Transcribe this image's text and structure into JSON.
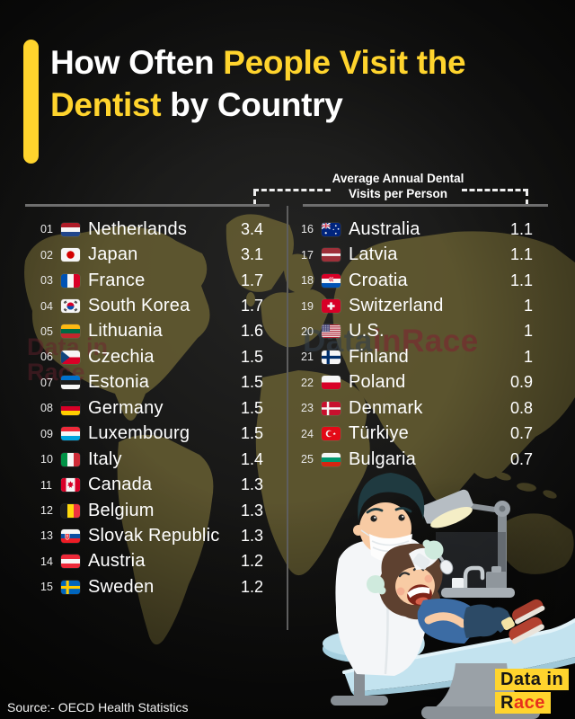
{
  "title": {
    "part1": "How Often ",
    "part2": "People Visit the",
    "part3": "Dentist",
    "part4": " by Country"
  },
  "header": {
    "label_line1": "Average Annual Dental",
    "label_line2": "Visits per Person"
  },
  "rankings": {
    "left": [
      {
        "rank": "01",
        "country": "Netherlands",
        "flag": "netherlands",
        "value": "3.4"
      },
      {
        "rank": "02",
        "country": "Japan",
        "flag": "japan",
        "value": "3.1"
      },
      {
        "rank": "03",
        "country": "France",
        "flag": "france",
        "value": "1.7"
      },
      {
        "rank": "04",
        "country": "South Korea",
        "flag": "south-korea",
        "value": "1.7"
      },
      {
        "rank": "05",
        "country": "Lithuania",
        "flag": "lithuania",
        "value": "1.6"
      },
      {
        "rank": "06",
        "country": "Czechia",
        "flag": "czechia",
        "value": "1.5"
      },
      {
        "rank": "07",
        "country": "Estonia",
        "flag": "estonia",
        "value": "1.5"
      },
      {
        "rank": "08",
        "country": "Germany",
        "flag": "germany",
        "value": "1.5"
      },
      {
        "rank": "09",
        "country": "Luxembourg",
        "flag": "luxembourg",
        "value": "1.5"
      },
      {
        "rank": "10",
        "country": "Italy",
        "flag": "italy",
        "value": "1.4"
      },
      {
        "rank": "11",
        "country": "Canada",
        "flag": "canada",
        "value": "1.3"
      },
      {
        "rank": "12",
        "country": "Belgium",
        "flag": "belgium",
        "value": "1.3"
      },
      {
        "rank": "13",
        "country": "Slovak Republic",
        "flag": "slovakia",
        "value": "1.3"
      },
      {
        "rank": "14",
        "country": "Austria",
        "flag": "austria",
        "value": "1.2"
      },
      {
        "rank": "15",
        "country": "Sweden",
        "flag": "sweden",
        "value": "1.2"
      }
    ],
    "right": [
      {
        "rank": "16",
        "country": "Australia",
        "flag": "australia",
        "value": "1.1"
      },
      {
        "rank": "17",
        "country": "Latvia",
        "flag": "latvia",
        "value": "1.1"
      },
      {
        "rank": "18",
        "country": "Croatia",
        "flag": "croatia",
        "value": "1.1"
      },
      {
        "rank": "19",
        "country": "Switzerland",
        "flag": "switzerland",
        "value": "1"
      },
      {
        "rank": "20",
        "country": "U.S.",
        "flag": "united-states",
        "value": "1"
      },
      {
        "rank": "21",
        "country": "Finland",
        "flag": "finland",
        "value": "1"
      },
      {
        "rank": "22",
        "country": "Poland",
        "flag": "poland",
        "value": "0.9"
      },
      {
        "rank": "23",
        "country": "Denmark",
        "flag": "denmark",
        "value": "0.8"
      },
      {
        "rank": "24",
        "country": "Türkiye",
        "flag": "turkiye",
        "value": "0.7"
      },
      {
        "rank": "25",
        "country": "Bulgaria",
        "flag": "bulgaria",
        "value": "0.7"
      }
    ]
  },
  "watermarks": {
    "center_part1": "Data",
    "center_part2": "in",
    "center_part3": "Race",
    "left_line1": "Data in",
    "left_line2": "Race"
  },
  "logo": {
    "line1": "Data in",
    "line2_part1": "R",
    "line2_part2": "ace"
  },
  "source": {
    "text": "Source:- OECD Health Statistics"
  },
  "colors": {
    "accent_yellow": "#ffd42d",
    "map_olive": "#6c6334",
    "logo_red": "#e8311c",
    "chair_blue": "#c3e3ef",
    "watermark_red": "#7c2531"
  },
  "chart_data": {
    "type": "table",
    "title": "How Often People Visit the Dentist by Country",
    "value_label": "Average Annual Dental Visits per Person",
    "source": "OECD Health Statistics",
    "categories": [
      "Netherlands",
      "Japan",
      "France",
      "South Korea",
      "Lithuania",
      "Czechia",
      "Estonia",
      "Germany",
      "Luxembourg",
      "Italy",
      "Canada",
      "Belgium",
      "Slovak Republic",
      "Austria",
      "Sweden",
      "Australia",
      "Latvia",
      "Croatia",
      "Switzerland",
      "U.S.",
      "Finland",
      "Poland",
      "Denmark",
      "Türkiye",
      "Bulgaria"
    ],
    "ranks": [
      1,
      2,
      3,
      4,
      5,
      6,
      7,
      8,
      9,
      10,
      11,
      12,
      13,
      14,
      15,
      16,
      17,
      18,
      19,
      20,
      21,
      22,
      23,
      24,
      25
    ],
    "values": [
      3.4,
      3.1,
      1.7,
      1.7,
      1.6,
      1.5,
      1.5,
      1.5,
      1.5,
      1.4,
      1.3,
      1.3,
      1.3,
      1.2,
      1.2,
      1.1,
      1.1,
      1.1,
      1,
      1,
      1,
      0.9,
      0.8,
      0.7,
      0.7
    ]
  }
}
